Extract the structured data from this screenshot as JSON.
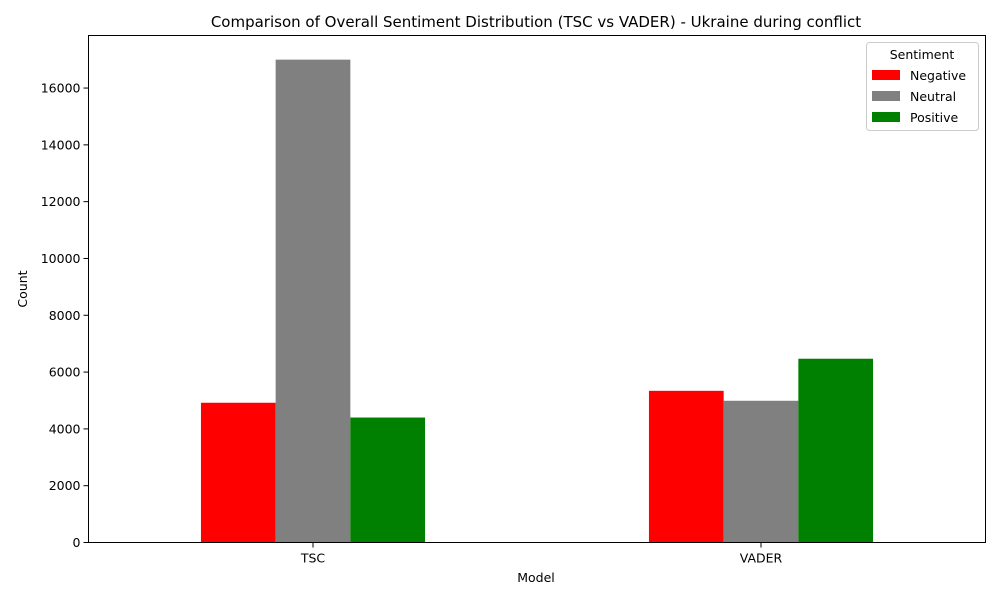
{
  "chart_data": {
    "type": "bar",
    "title": "Comparison of Overall Sentiment Distribution (TSC vs VADER) - Ukraine during conflict",
    "xlabel": "Model",
    "ylabel": "Count",
    "categories": [
      "TSC",
      "VADER"
    ],
    "series": [
      {
        "name": "Negative",
        "color": "#ff0000",
        "values": [
          4920,
          5340
        ]
      },
      {
        "name": "Neutral",
        "color": "#808080",
        "values": [
          17000,
          4990
        ]
      },
      {
        "name": "Positive",
        "color": "#008000",
        "values": [
          4400,
          6470
        ]
      }
    ],
    "ylim": [
      0,
      17850
    ],
    "yticks": [
      0,
      2000,
      4000,
      6000,
      8000,
      10000,
      12000,
      14000,
      16000
    ],
    "legend": {
      "title": "Sentiment",
      "placement": "top-right"
    },
    "grid": false
  }
}
